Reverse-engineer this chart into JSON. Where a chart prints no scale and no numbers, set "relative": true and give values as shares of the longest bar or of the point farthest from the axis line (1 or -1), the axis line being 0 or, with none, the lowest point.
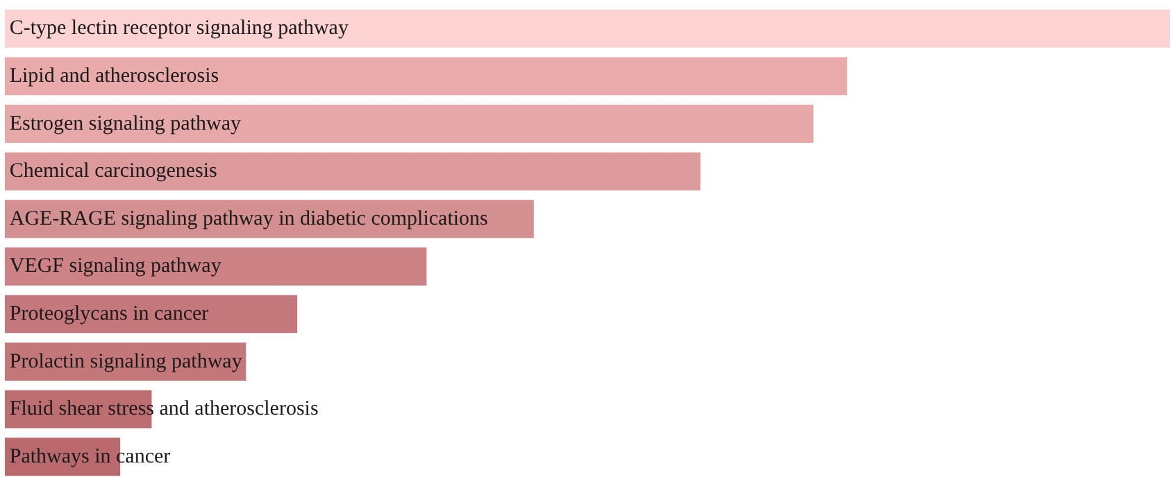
{
  "chart_data": {
    "type": "bar",
    "orientation": "horizontal",
    "relative": true,
    "categories": [
      "C-type lectin receptor signaling pathway",
      "Lipid and atherosclerosis",
      "Estrogen signaling pathway",
      "Chemical carcinogenesis",
      "AGE-RAGE signaling pathway in diabetic complications",
      "VEGF signaling pathway",
      "Proteoglycans in cancer",
      "Prolactin signaling pathway",
      "Fluid shear stress and atherosclerosis",
      "Pathways in cancer"
    ],
    "values": [
      1,
      0.723,
      0.694,
      0.597,
      0.454,
      0.362,
      0.251,
      0.207,
      0.126,
      0.099
    ],
    "colors": [
      "#fcd2d3",
      "#e8aaab",
      "#e6a8a9",
      "#dc9a9c",
      "#d48f91",
      "#cd8386",
      "#c5787b",
      "#c47779",
      "#bd6e71",
      "#ba6a6d"
    ]
  }
}
